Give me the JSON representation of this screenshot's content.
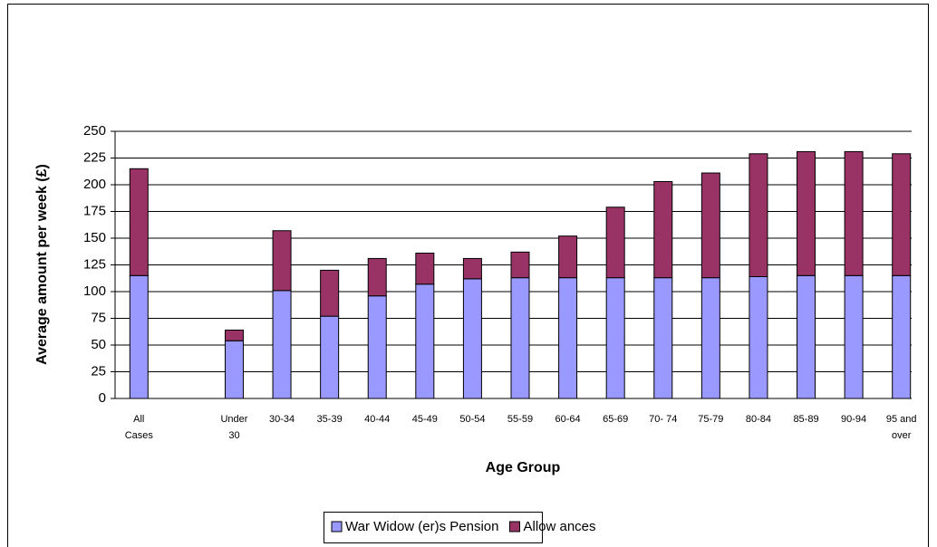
{
  "chart_data": {
    "type": "stacked-bar",
    "x_label": "Age Group",
    "y_label": "Average amount per week (£)",
    "categories": [
      "All Cases",
      null,
      "Under 30",
      "30-34",
      "35-39",
      "40-44",
      "45-49",
      "50-54",
      "55-59",
      "60-64",
      "65-69",
      "70- 74",
      "75-79",
      "80-84",
      "85-89",
      "90-94",
      "95 and over"
    ],
    "series": [
      {
        "name": "War Widow (er)s Pension",
        "color": "#9999ff",
        "values": [
          115,
          null,
          54,
          101,
          77,
          96,
          107,
          112,
          113,
          113,
          113,
          113,
          113,
          114,
          115,
          115,
          115
        ]
      },
      {
        "name": "Allow ances",
        "color": "#993366",
        "values": [
          100,
          null,
          10,
          56,
          43,
          35,
          29,
          19,
          24,
          39,
          66,
          90,
          98,
          115,
          116,
          116,
          114
        ]
      }
    ],
    "ylim": [
      0,
      250
    ],
    "yticks": [
      0,
      25,
      50,
      75,
      100,
      125,
      150,
      175,
      200,
      225,
      250
    ],
    "grid": true
  }
}
